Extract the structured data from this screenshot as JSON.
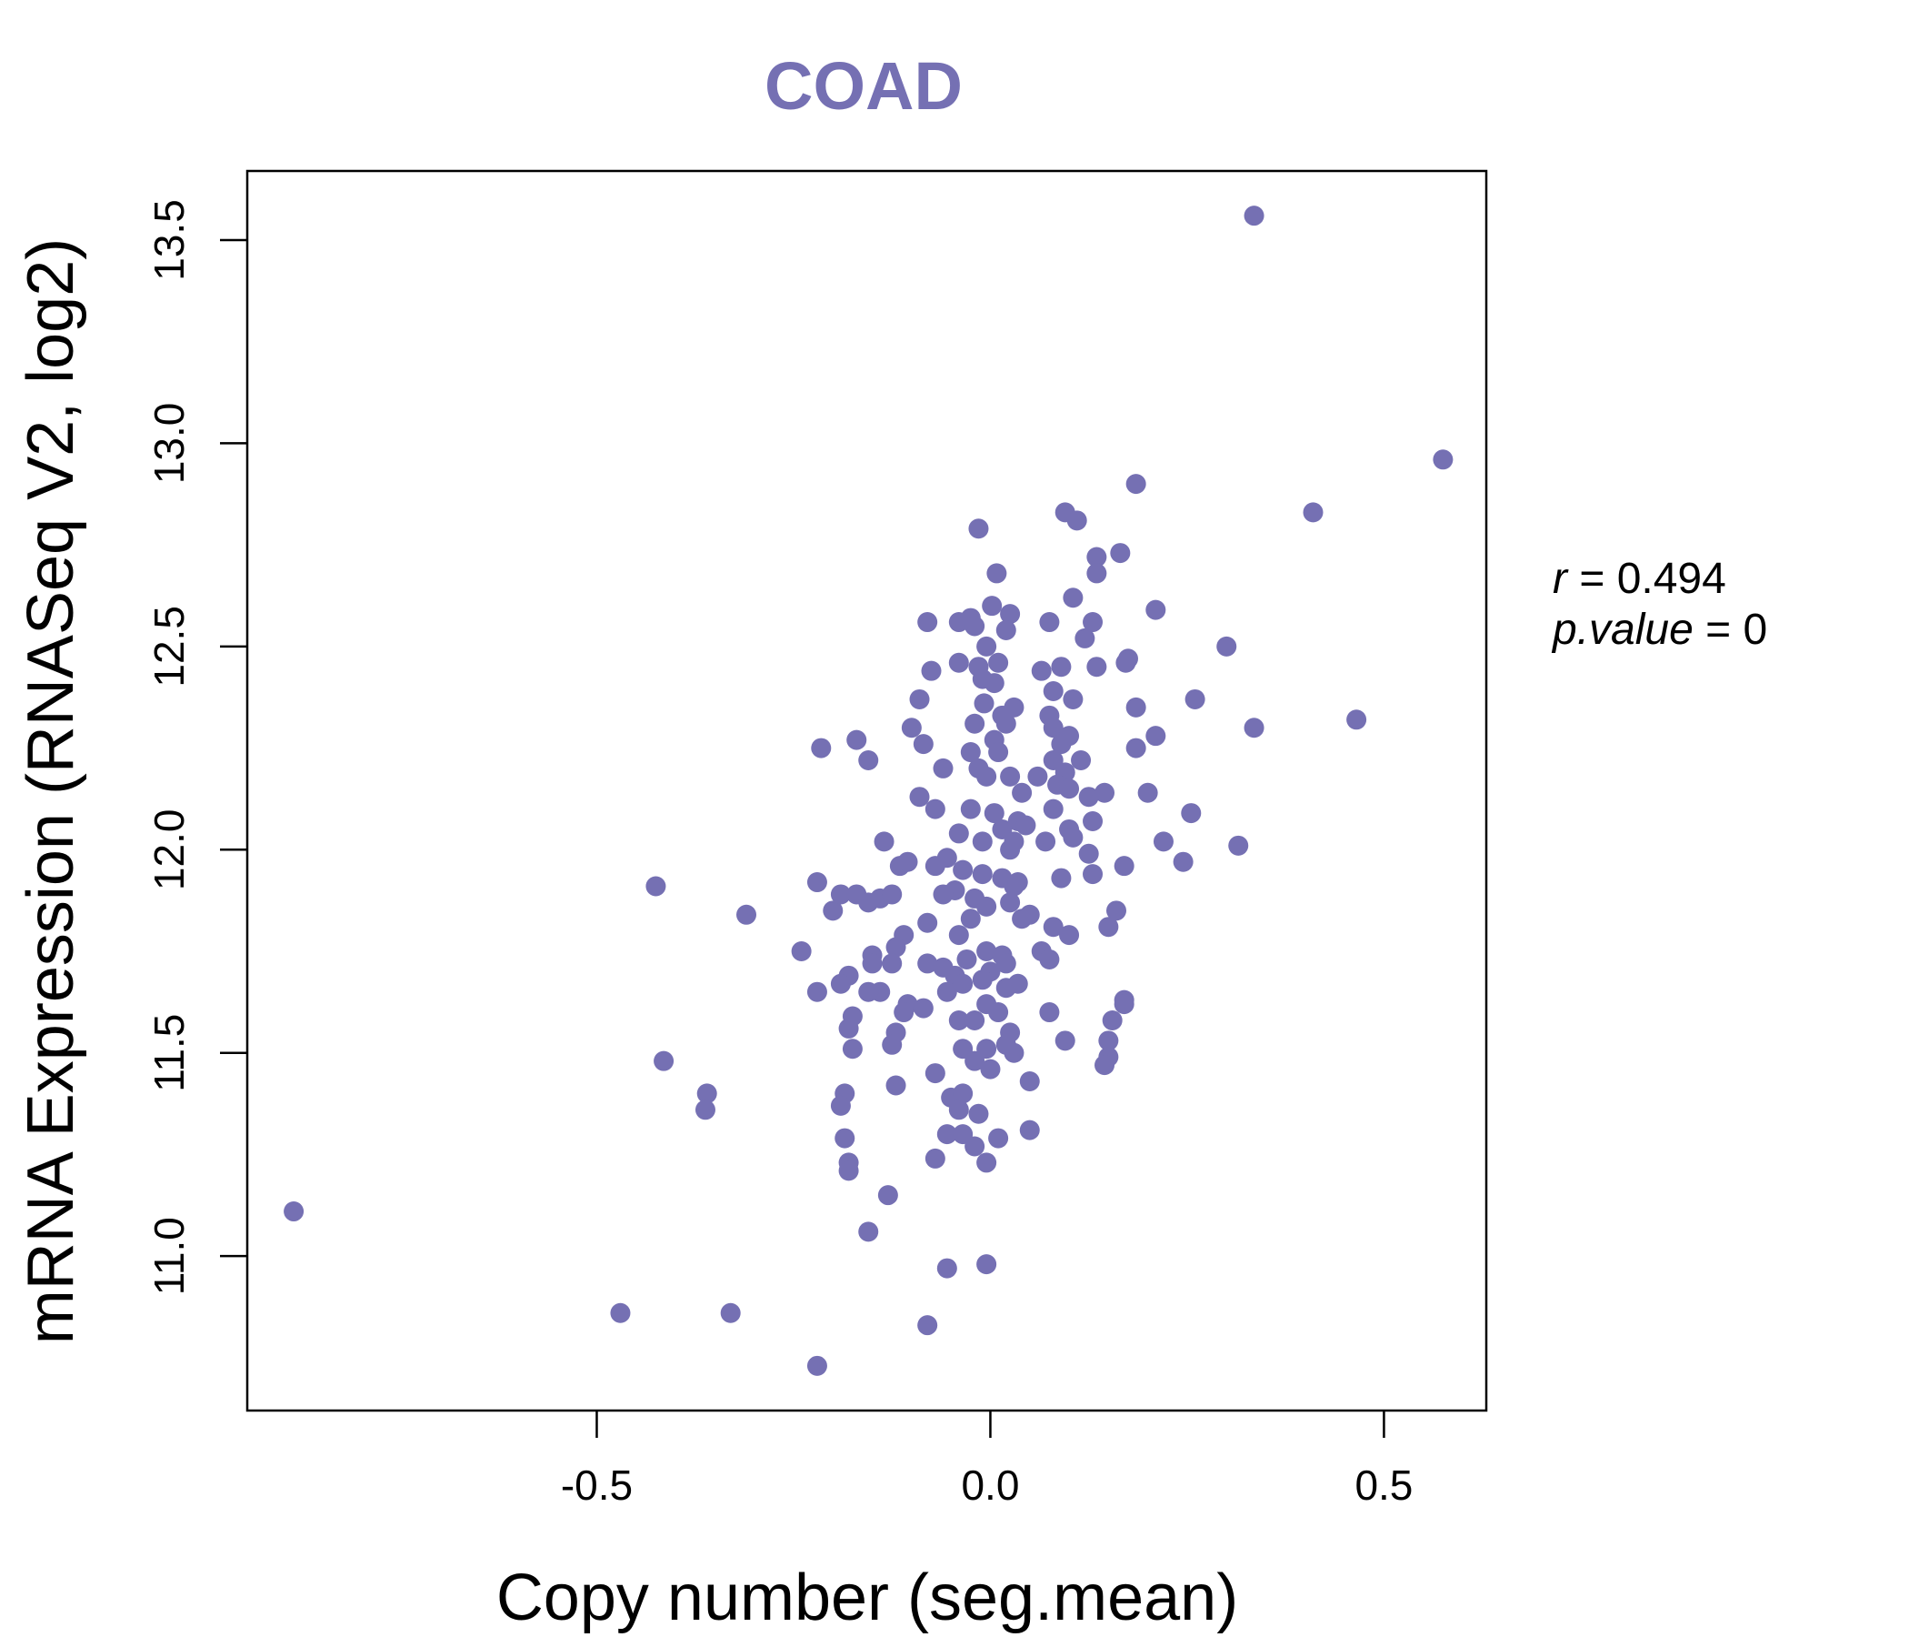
{
  "chart_data": {
    "type": "scatter",
    "title": "COAD",
    "xlabel": "Copy number (seg.mean)",
    "ylabel": "mRNA Expression (RNASeq V2, log2)",
    "xlim": [
      -0.944,
      0.63
    ],
    "ylim": [
      10.62,
      13.67
    ],
    "x_ticks": [
      -0.5,
      0.0,
      0.5
    ],
    "x_tick_labels": [
      "-0.5",
      "0.0",
      "0.5"
    ],
    "y_ticks": [
      11.0,
      11.5,
      12.0,
      12.5,
      13.0,
      13.5
    ],
    "y_tick_labels": [
      "11.0",
      "11.5",
      "12.0",
      "12.5",
      "13.0",
      "13.5"
    ],
    "grid": false,
    "point_color": "#7570b3",
    "stats": {
      "r_label": "r",
      "r_value": "0.494",
      "p_label": "p.value",
      "p_value": "0"
    },
    "points": [
      [
        -0.885,
        11.11
      ],
      [
        -0.47,
        10.86
      ],
      [
        -0.33,
        10.86
      ],
      [
        -0.22,
        10.73
      ],
      [
        -0.08,
        10.83
      ],
      [
        -0.425,
        11.91
      ],
      [
        -0.415,
        11.48
      ],
      [
        -0.36,
        11.4
      ],
      [
        -0.362,
        11.36
      ],
      [
        -0.31,
        11.84
      ],
      [
        -0.24,
        11.75
      ],
      [
        -0.22,
        11.65
      ],
      [
        -0.22,
        11.92
      ],
      [
        -0.215,
        12.25
      ],
      [
        -0.17,
        12.27
      ],
      [
        -0.155,
        12.22
      ],
      [
        -0.2,
        11.85
      ],
      [
        -0.19,
        11.89
      ],
      [
        -0.17,
        11.89
      ],
      [
        -0.155,
        11.87
      ],
      [
        -0.14,
        11.88
      ],
      [
        -0.125,
        11.89
      ],
      [
        -0.135,
        12.02
      ],
      [
        -0.115,
        11.96
      ],
      [
        -0.105,
        11.97
      ],
      [
        -0.1,
        12.3
      ],
      [
        -0.085,
        12.26
      ],
      [
        -0.09,
        12.37
      ],
      [
        -0.075,
        12.44
      ],
      [
        -0.08,
        12.56
      ],
      [
        -0.04,
        12.56
      ],
      [
        -0.025,
        12.57
      ],
      [
        -0.02,
        12.55
      ],
      [
        -0.015,
        12.45
      ],
      [
        -0.005,
        12.5
      ],
      [
        -0.04,
        12.46
      ],
      [
        -0.015,
        12.79
      ],
      [
        0.008,
        12.68
      ],
      [
        0.002,
        12.6
      ],
      [
        0.025,
        12.58
      ],
      [
        0.02,
        12.54
      ],
      [
        -0.01,
        12.42
      ],
      [
        0.01,
        12.46
      ],
      [
        0.005,
        12.41
      ],
      [
        -0.008,
        12.36
      ],
      [
        0.015,
        12.33
      ],
      [
        0.03,
        12.35
      ],
      [
        0.02,
        12.31
      ],
      [
        -0.02,
        12.31
      ],
      [
        0.005,
        12.27
      ],
      [
        -0.025,
        12.24
      ],
      [
        0.01,
        12.24
      ],
      [
        -0.015,
        12.2
      ],
      [
        -0.005,
        12.18
      ],
      [
        0.025,
        12.18
      ],
      [
        0.04,
        12.14
      ],
      [
        -0.06,
        12.2
      ],
      [
        -0.09,
        12.13
      ],
      [
        -0.07,
        12.1
      ],
      [
        -0.025,
        12.1
      ],
      [
        0.005,
        12.09
      ],
      [
        0.035,
        12.07
      ],
      [
        0.015,
        12.05
      ],
      [
        -0.04,
        12.04
      ],
      [
        -0.01,
        12.02
      ],
      [
        0.025,
        12.0
      ],
      [
        -0.055,
        11.98
      ],
      [
        -0.07,
        11.96
      ],
      [
        -0.035,
        11.95
      ],
      [
        -0.01,
        11.94
      ],
      [
        0.015,
        11.93
      ],
      [
        0.03,
        11.91
      ],
      [
        -0.045,
        11.9
      ],
      [
        -0.06,
        11.89
      ],
      [
        -0.02,
        11.88
      ],
      [
        -0.005,
        11.86
      ],
      [
        0.025,
        11.87
      ],
      [
        0.04,
        11.83
      ],
      [
        0.05,
        11.84
      ],
      [
        -0.025,
        11.83
      ],
      [
        -0.04,
        11.79
      ],
      [
        -0.08,
        11.82
      ],
      [
        -0.11,
        11.79
      ],
      [
        -0.12,
        11.76
      ],
      [
        -0.15,
        11.74
      ],
      [
        -0.15,
        11.72
      ],
      [
        -0.125,
        11.72
      ],
      [
        -0.08,
        11.72
      ],
      [
        -0.06,
        11.71
      ],
      [
        -0.045,
        11.69
      ],
      [
        -0.03,
        11.73
      ],
      [
        -0.005,
        11.75
      ],
      [
        0.015,
        11.74
      ],
      [
        0.02,
        11.72
      ],
      [
        0.0,
        11.7
      ],
      [
        -0.01,
        11.68
      ],
      [
        0.02,
        11.66
      ],
      [
        0.035,
        11.67
      ],
      [
        -0.035,
        11.67
      ],
      [
        -0.055,
        11.65
      ],
      [
        -0.14,
        11.65
      ],
      [
        -0.155,
        11.65
      ],
      [
        -0.18,
        11.69
      ],
      [
        -0.19,
        11.67
      ],
      [
        -0.175,
        11.59
      ],
      [
        -0.18,
        11.56
      ],
      [
        -0.105,
        11.62
      ],
      [
        -0.11,
        11.6
      ],
      [
        -0.085,
        11.61
      ],
      [
        -0.04,
        11.58
      ],
      [
        -0.02,
        11.58
      ],
      [
        -0.005,
        11.62
      ],
      [
        0.01,
        11.6
      ],
      [
        0.025,
        11.55
      ],
      [
        0.02,
        11.52
      ],
      [
        -0.12,
        11.55
      ],
      [
        -0.125,
        11.52
      ],
      [
        -0.175,
        11.51
      ],
      [
        -0.005,
        11.51
      ],
      [
        0.03,
        11.5
      ],
      [
        0.0,
        11.46
      ],
      [
        -0.035,
        11.51
      ],
      [
        -0.02,
        11.48
      ],
      [
        -0.07,
        11.45
      ],
      [
        0.05,
        11.43
      ],
      [
        -0.12,
        11.42
      ],
      [
        -0.185,
        11.4
      ],
      [
        -0.19,
        11.37
      ],
      [
        -0.05,
        11.39
      ],
      [
        -0.035,
        11.4
      ],
      [
        -0.04,
        11.36
      ],
      [
        -0.015,
        11.35
      ],
      [
        -0.185,
        11.29
      ],
      [
        -0.055,
        11.3
      ],
      [
        -0.035,
        11.3
      ],
      [
        0.01,
        11.29
      ],
      [
        0.05,
        11.31
      ],
      [
        -0.02,
        11.27
      ],
      [
        -0.07,
        11.24
      ],
      [
        -0.005,
        11.23
      ],
      [
        -0.18,
        11.23
      ],
      [
        -0.18,
        11.21
      ],
      [
        -0.13,
        11.15
      ],
      [
        -0.155,
        11.06
      ],
      [
        -0.055,
        10.97
      ],
      [
        -0.005,
        10.98
      ],
      [
        0.095,
        12.83
      ],
      [
        0.11,
        12.81
      ],
      [
        0.185,
        12.9
      ],
      [
        0.165,
        12.73
      ],
      [
        0.135,
        12.72
      ],
      [
        0.135,
        12.68
      ],
      [
        0.105,
        12.62
      ],
      [
        0.21,
        12.59
      ],
      [
        0.075,
        12.56
      ],
      [
        0.13,
        12.56
      ],
      [
        0.12,
        12.52
      ],
      [
        0.175,
        12.47
      ],
      [
        0.172,
        12.46
      ],
      [
        0.09,
        12.45
      ],
      [
        0.135,
        12.45
      ],
      [
        0.065,
        12.44
      ],
      [
        0.08,
        12.39
      ],
      [
        0.105,
        12.37
      ],
      [
        0.185,
        12.35
      ],
      [
        0.075,
        12.33
      ],
      [
        0.08,
        12.3
      ],
      [
        0.1,
        12.28
      ],
      [
        0.09,
        12.26
      ],
      [
        0.21,
        12.28
      ],
      [
        0.185,
        12.25
      ],
      [
        0.08,
        12.22
      ],
      [
        0.115,
        12.22
      ],
      [
        0.095,
        12.19
      ],
      [
        0.085,
        12.16
      ],
      [
        0.06,
        12.18
      ],
      [
        0.1,
        12.15
      ],
      [
        0.145,
        12.14
      ],
      [
        0.125,
        12.13
      ],
      [
        0.2,
        12.14
      ],
      [
        0.08,
        12.1
      ],
      [
        0.13,
        12.07
      ],
      [
        0.1,
        12.05
      ],
      [
        0.105,
        12.03
      ],
      [
        0.07,
        12.02
      ],
      [
        0.255,
        12.09
      ],
      [
        0.045,
        12.06
      ],
      [
        0.03,
        12.02
      ],
      [
        0.125,
        11.99
      ],
      [
        0.17,
        11.96
      ],
      [
        0.09,
        11.93
      ],
      [
        0.13,
        11.94
      ],
      [
        0.035,
        11.92
      ],
      [
        0.22,
        12.02
      ],
      [
        0.245,
        11.97
      ],
      [
        0.315,
        12.01
      ],
      [
        0.16,
        11.85
      ],
      [
        0.15,
        11.81
      ],
      [
        0.08,
        11.81
      ],
      [
        0.1,
        11.79
      ],
      [
        0.065,
        11.75
      ],
      [
        0.075,
        11.73
      ],
      [
        0.17,
        11.63
      ],
      [
        0.17,
        11.62
      ],
      [
        0.075,
        11.6
      ],
      [
        0.155,
        11.58
      ],
      [
        0.15,
        11.53
      ],
      [
        0.095,
        11.53
      ],
      [
        0.15,
        11.49
      ],
      [
        0.145,
        11.47
      ],
      [
        0.3,
        12.5
      ],
      [
        0.26,
        12.37
      ],
      [
        0.335,
        12.3
      ],
      [
        0.465,
        12.32
      ],
      [
        0.41,
        12.83
      ],
      [
        0.575,
        12.96
      ],
      [
        0.335,
        13.56
      ]
    ]
  }
}
